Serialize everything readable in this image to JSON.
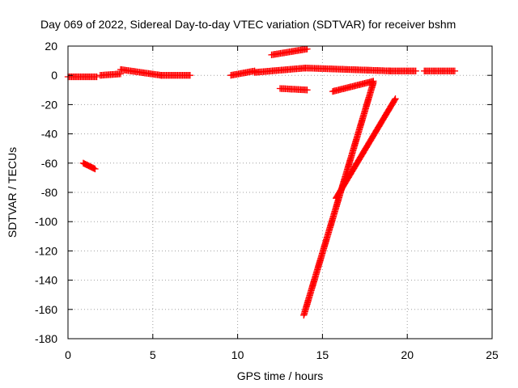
{
  "chart_data": {
    "type": "scatter",
    "title": "Day 069 of 2022, Sidereal Day-to-day VTEC variation (SDTVAR) for receiver bshm",
    "xlabel": "GPS time / hours",
    "ylabel": "SDTVAR / TECUs",
    "xlim": [
      0,
      25
    ],
    "ylim": [
      -180,
      20
    ],
    "xticks": [
      0,
      5,
      10,
      15,
      20,
      25
    ],
    "yticks": [
      20,
      0,
      -20,
      -40,
      -60,
      -80,
      -100,
      -120,
      -140,
      -160,
      -180
    ],
    "grid": true,
    "marker": "+",
    "color": "#ff0000",
    "segments": [
      {
        "name": "arc-01",
        "x": [
          0.0,
          1.7
        ],
        "y": [
          -1,
          -1
        ]
      },
      {
        "name": "arc-02",
        "x": [
          0.9,
          1.6
        ],
        "y": [
          -60,
          -64
        ]
      },
      {
        "name": "arc-03",
        "x": [
          1.9,
          3.1
        ],
        "y": [
          0,
          1
        ]
      },
      {
        "name": "arc-04",
        "x": [
          3.1,
          5.5
        ],
        "y": [
          4,
          0
        ]
      },
      {
        "name": "arc-05",
        "x": [
          5.5,
          7.2
        ],
        "y": [
          0,
          0
        ]
      },
      {
        "name": "arc-06",
        "x": [
          9.6,
          11.0
        ],
        "y": [
          0,
          3
        ]
      },
      {
        "name": "arc-07",
        "x": [
          11.0,
          14.0
        ],
        "y": [
          2,
          5
        ]
      },
      {
        "name": "arc-08",
        "x": [
          12.0,
          14.1
        ],
        "y": [
          14,
          18
        ]
      },
      {
        "name": "arc-09",
        "x": [
          12.5,
          14.1
        ],
        "y": [
          -9,
          -10
        ]
      },
      {
        "name": "arc-10",
        "x": [
          14.0,
          19.0
        ],
        "y": [
          5,
          3
        ]
      },
      {
        "name": "arc-11",
        "x": [
          19.0,
          20.5
        ],
        "y": [
          3,
          3
        ]
      },
      {
        "name": "arc-12",
        "x": [
          21.0,
          22.8
        ],
        "y": [
          3,
          3
        ]
      },
      {
        "name": "arc-13",
        "x": [
          15.6,
          18.0
        ],
        "y": [
          -11,
          -4
        ]
      },
      {
        "name": "arc-14",
        "x": [
          13.9,
          18.0
        ],
        "y": [
          -164,
          -5
        ]
      },
      {
        "name": "arc-15",
        "x": [
          15.8,
          19.3
        ],
        "y": [
          -84,
          -16
        ]
      }
    ]
  }
}
